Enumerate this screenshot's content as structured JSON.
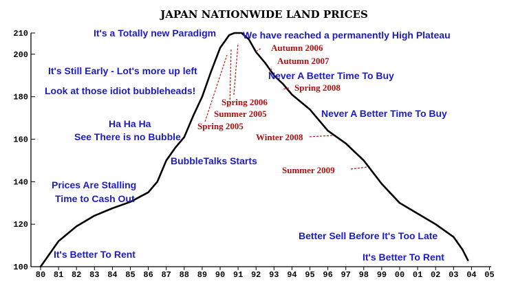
{
  "chart_data": {
    "type": "line",
    "title": "JAPAN NATIONWIDE LAND PRICES",
    "xlabel": "",
    "ylabel": "",
    "x_ticks": [
      "80",
      "81",
      "82",
      "83",
      "84",
      "85",
      "86",
      "87",
      "88",
      "89",
      "90",
      "91",
      "92",
      "93",
      "94",
      "95",
      "96",
      "97",
      "98",
      "99",
      "00",
      "01",
      "02",
      "03",
      "04",
      "05"
    ],
    "y_ticks": [
      100,
      120,
      140,
      160,
      180,
      200,
      210
    ],
    "ylim": [
      100,
      210
    ],
    "xlim": [
      1980,
      2005
    ],
    "grid": false,
    "series": [
      {
        "x": [
          1980.0,
          1981.0,
          1982.0,
          1983.0,
          1984.0,
          1985.0,
          1986.0,
          1986.5,
          1987.0,
          1987.5,
          1988.0,
          1988.5,
          1989.0,
          1989.5,
          1990.0,
          1990.5,
          1990.8,
          1991.2,
          1991.6,
          1992.0,
          1992.5,
          1993.0,
          1993.5,
          1994.0,
          1995.0,
          1996.0,
          1997.0,
          1998.0,
          1999.0,
          2000.0,
          2001.0,
          2002.0,
          2003.0,
          2003.5,
          2003.8
        ],
        "values": [
          100,
          112,
          119,
          124,
          127.5,
          130.5,
          135,
          140,
          150,
          156,
          161,
          171,
          180,
          192,
          203,
          209,
          210,
          210,
          207,
          201,
          196,
          190,
          186,
          181,
          174,
          164,
          158,
          150,
          139,
          130,
          125,
          120,
          114,
          108,
          103
        ]
      }
    ],
    "annotations_blue": [
      "It's a Totally new Paradigm",
      "We have reached a permanently High Plateau",
      "It's Still Early - Lot's more up left",
      "Look at those idiot bubbleheads!",
      "Never A Better Time To Buy",
      "Never A Better Time To Buy",
      "Ha Ha Ha",
      "See There is no Bubble",
      "BubbleTalks Starts",
      "Prices Are Stalling",
      "Time to Cash Out",
      "Better Sell Before It's Too Late",
      "It's Better To Rent",
      "It's Better To Rent"
    ],
    "annotations_red": [
      "Autumn 2006",
      "Autumn 2007",
      "Spring 2008",
      "Spring 2006",
      "Summer 2005",
      "Spring 2005",
      "Winter 2008",
      "Summer 2009"
    ],
    "colors": {
      "line": "#000000",
      "blue_text": "#1c1cc0",
      "red_text": "#b01010"
    }
  }
}
